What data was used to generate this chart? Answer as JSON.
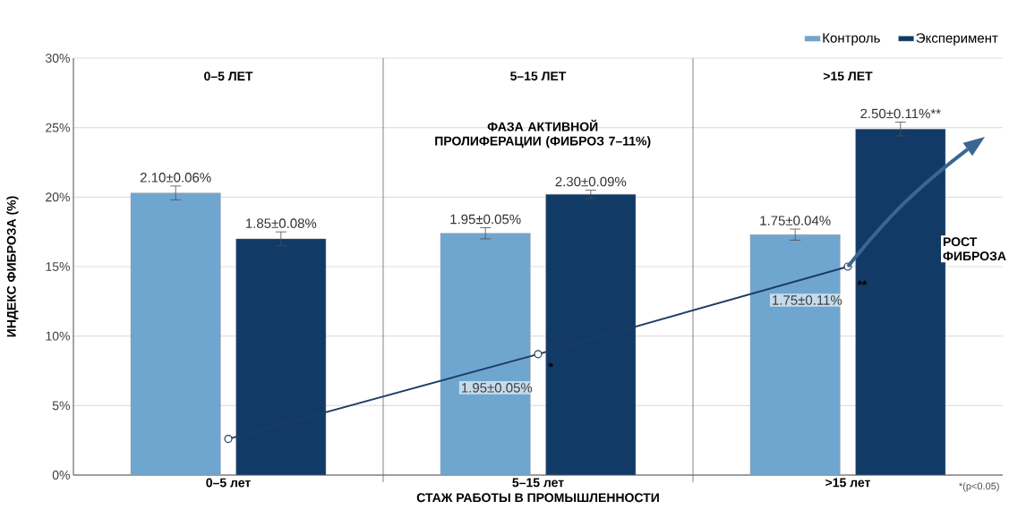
{
  "chart_data": {
    "type": "bar",
    "xlabel": "СТАЖ РАБОТЫ В ПРОМЫШЛЕННОСТИ",
    "ylabel": "ИНДЕКС ФИБРОЗА (%)",
    "categories": [
      "0–5 лет",
      "5–15 лет",
      ">15 лет"
    ],
    "series": [
      {
        "name": "Контроль",
        "color": "#6fa6d0",
        "values": [
          20.3,
          17.4,
          17.3
        ],
        "errors": [
          0.5,
          0.4,
          0.4
        ]
      },
      {
        "name": "Эксперимент",
        "color": "#113a66",
        "values": [
          17.0,
          20.2,
          24.9
        ],
        "errors": [
          0.5,
          0.3,
          0.5
        ]
      },
      {
        "type": "line",
        "color": "#1c3d63",
        "marker": "circle",
        "values": [
          2.6,
          8.7,
          15.0
        ]
      }
    ],
    "ylim": [
      0,
      30
    ],
    "yticks": [
      {
        "value": 0,
        "label": "0%"
      },
      {
        "value": 5,
        "label": "5%"
      },
      {
        "value": 10,
        "label": "10%"
      },
      {
        "value": 15,
        "label": "15%"
      },
      {
        "value": 20,
        "label": "20%"
      },
      {
        "value": 25,
        "label": "25%"
      },
      {
        "value": 30,
        "label": "30%"
      }
    ],
    "grid": "y",
    "legend": "top right",
    "annotations": [
      "0–5 ЛЕТ",
      "5–15 ЛЕТ",
      ">15 ЛЕТ",
      "ФАЗА АКТИВНОЙ ПРОЛИФЕРАЦИИ (ФИБРОЗ 7–11%)",
      "РОСТ ФИБРОЗА",
      "*",
      "**",
      "*(p<0.05)",
      "2.10±0.06%",
      "1.95±0.05%",
      "1.75±0.04%",
      "1.85±0.08%",
      "2.30±0.09%",
      "2.50±0.11%**",
      "1.95±0.05%",
      "1.75±0.11%"
    ]
  }
}
